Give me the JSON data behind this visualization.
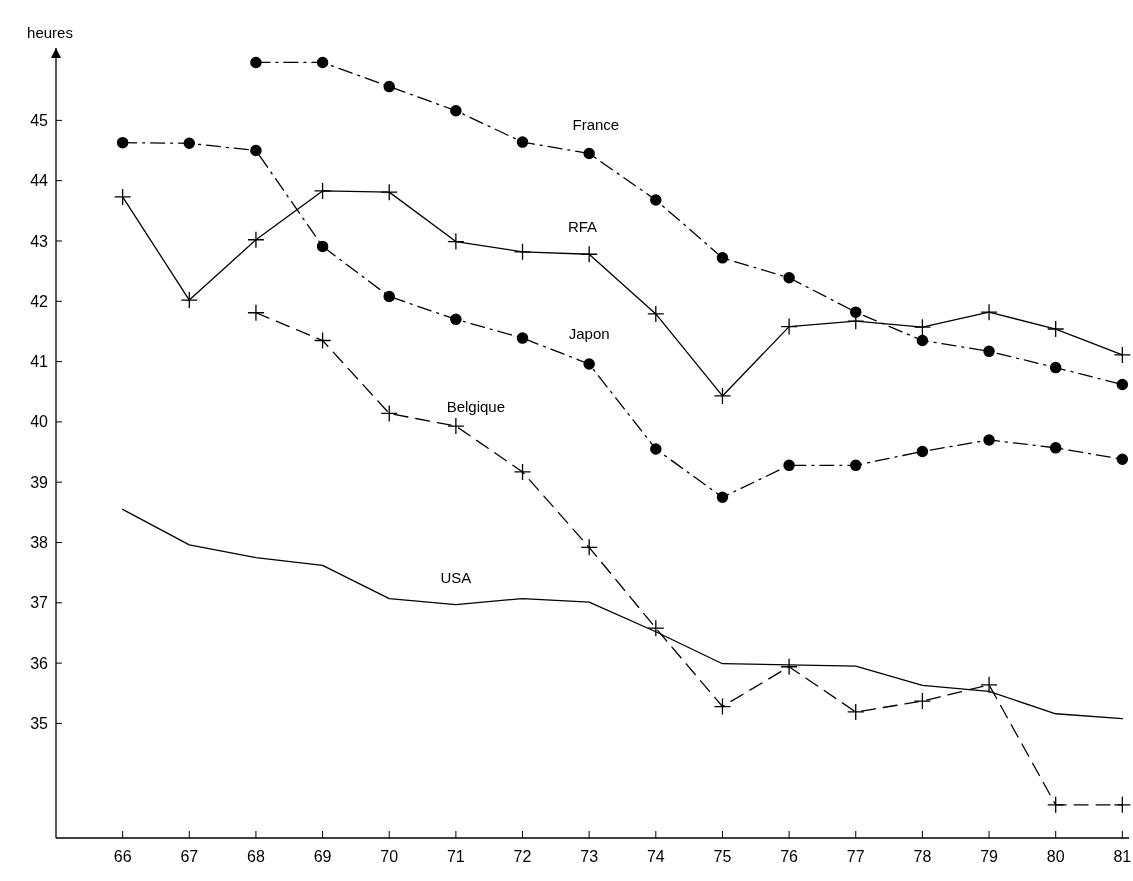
{
  "chart_data": {
    "type": "line",
    "ylabel": "heures",
    "xlim": [
      65,
      81.1
    ],
    "ylim": [
      33.1,
      46.2
    ],
    "xticks": [
      66,
      67,
      68,
      69,
      70,
      71,
      72,
      73,
      74,
      75,
      76,
      77,
      78,
      79,
      80,
      81
    ],
    "yticks": [
      35,
      36,
      37,
      38,
      39,
      40,
      41,
      42,
      43,
      44,
      45
    ],
    "grid": false,
    "series": [
      {
        "name": "France",
        "color": "#000000",
        "marker": "circle",
        "line_style": "dashdot",
        "x": [
          68,
          69,
          70,
          71,
          72,
          73,
          74,
          75,
          76,
          77,
          78,
          79,
          80,
          81
        ],
        "values": [
          45.96,
          45.96,
          45.56,
          45.16,
          44.64,
          44.45,
          43.68,
          42.72,
          42.39,
          41.82,
          41.35,
          41.17,
          40.9,
          40.62
        ]
      },
      {
        "name": "RFA",
        "color": "#000000",
        "marker": "cross",
        "line_style": "solid",
        "x": [
          66,
          67,
          68,
          69,
          70,
          71,
          72,
          73,
          74,
          75,
          76,
          77,
          78,
          79,
          80,
          81
        ],
        "values": [
          43.73,
          42.02,
          43.02,
          43.83,
          43.81,
          42.99,
          42.82,
          42.78,
          41.79,
          40.43,
          41.58,
          41.67,
          41.57,
          41.82,
          41.54,
          41.11
        ]
      },
      {
        "name": "Japon",
        "color": "#000000",
        "marker": "circle",
        "line_style": "dashdot",
        "x": [
          66,
          67,
          68,
          69,
          70,
          71,
          72,
          73,
          74,
          75,
          76,
          77,
          78,
          79,
          80,
          81
        ],
        "values": [
          44.63,
          44.62,
          44.5,
          42.91,
          42.08,
          41.7,
          41.39,
          40.96,
          39.55,
          38.75,
          39.28,
          39.28,
          39.51,
          39.7,
          39.57,
          39.38
        ]
      },
      {
        "name": "Belgique",
        "color": "#000000",
        "marker": "cross",
        "line_style": "dashed",
        "x": [
          68,
          69,
          70,
          71,
          72,
          73,
          74,
          75,
          76,
          77,
          78,
          79,
          80,
          81
        ],
        "values": [
          41.81,
          41.35,
          40.14,
          39.93,
          39.17,
          37.92,
          36.58,
          35.28,
          35.94,
          35.19,
          35.37,
          35.64,
          33.65,
          33.65
        ]
      },
      {
        "name": "USA",
        "color": "#000000",
        "marker": "none",
        "line_style": "solid",
        "x": [
          66,
          67,
          68,
          69,
          70,
          71,
          72,
          73,
          74,
          75,
          76,
          77,
          78,
          79,
          80,
          81
        ],
        "values": [
          38.55,
          37.96,
          37.75,
          37.62,
          37.07,
          36.97,
          37.07,
          37.01,
          36.52,
          35.99,
          35.97,
          35.95,
          35.63,
          35.53,
          35.16,
          35.08
        ]
      }
    ]
  }
}
